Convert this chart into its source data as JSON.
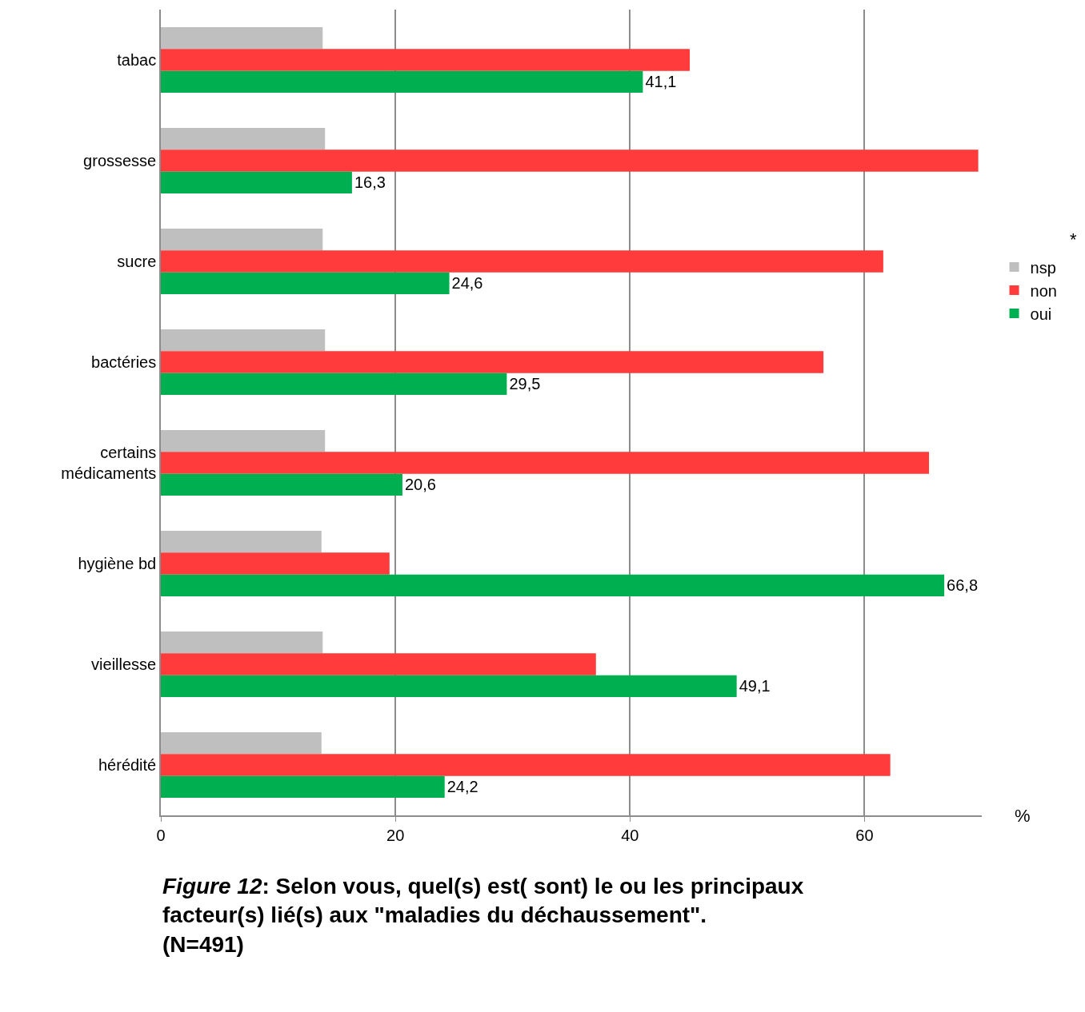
{
  "chart_data": {
    "type": "bar",
    "orientation": "horizontal",
    "title": "Figure 12: Selon vous, quel(s) est( sont) le ou les principaux\nfacteur(s) lié(s) aux \"maladies du déchaussement\".\n(N=491)",
    "categories": [
      "tabac",
      "grossesse",
      "sucre",
      "bactéries",
      "certains\nmédicaments",
      "hygiène bd",
      "vieillesse",
      "hérédité"
    ],
    "series": [
      {
        "name": "nsp",
        "color": "#bfbfbf",
        "values": [
          13.8,
          14.0,
          13.8,
          14.0,
          14.0,
          13.7,
          13.8,
          13.7
        ]
      },
      {
        "name": "non",
        "color": "#ff3b3b",
        "values": [
          45.1,
          69.7,
          61.6,
          56.5,
          65.5,
          19.5,
          37.1,
          62.2
        ]
      },
      {
        "name": "oui",
        "color": "#00b050",
        "values": [
          41.1,
          16.3,
          24.6,
          29.5,
          20.6,
          66.8,
          49.1,
          24.2
        ],
        "value_labels": [
          "41,1",
          "16,3",
          "24,6",
          "29,5",
          "20,6",
          "66,8",
          "49,1",
          "24,2"
        ]
      }
    ],
    "xlim": [
      0,
      70
    ],
    "xticks": [
      0,
      20,
      40,
      60
    ],
    "grid": "x",
    "legend": "right",
    "annotations": [
      "*",
      "%"
    ]
  }
}
